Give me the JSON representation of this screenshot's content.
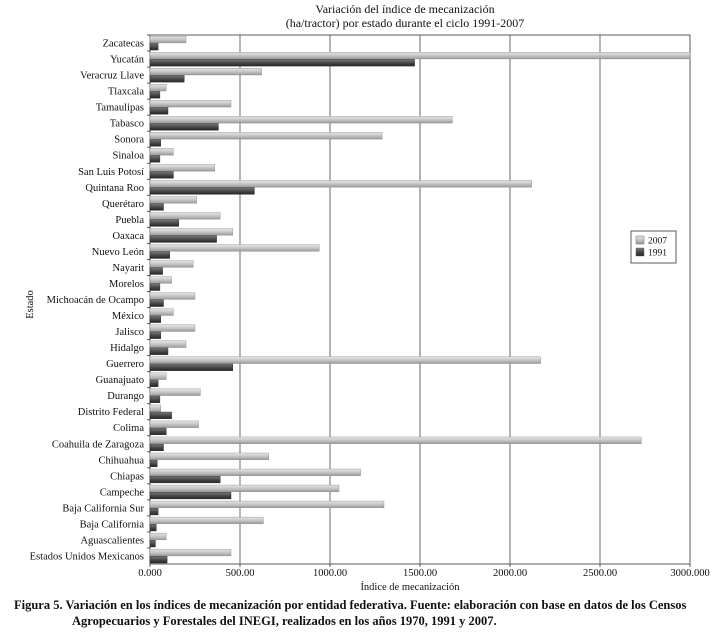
{
  "chart_data": {
    "type": "bar",
    "orientation": "horizontal",
    "title": "Variación del índice de mecanización\n(ha/tractor) por estado durante el ciclo 1991-2007",
    "xlabel": "Índice de mecanización",
    "ylabel": "Estado",
    "xlim": [
      0,
      3000
    ],
    "xticks": [
      "0.000",
      "500.00",
      "1000.00",
      "1500.00",
      "2000.00",
      "2500.00",
      "3000.000"
    ],
    "grid": "vertical",
    "legend_position": "right",
    "categories": [
      "Zacatecas",
      "Yucatán",
      "Veracruz Llave",
      "Tlaxcala",
      "Tamaulipas",
      "Tabasco",
      "Sonora",
      "Sinaloa",
      "San Luis Potosí",
      "Quintana Roo",
      "Querétaro",
      "Puebla",
      "Oaxaca",
      "Nuevo León",
      "Nayarit",
      "Morelos",
      "Michoacán de Ocampo",
      "México",
      "Jalisco",
      "Hidalgo",
      "Guerrero",
      "Guanajuato",
      "Durango",
      "Distrito Federal",
      "Colima",
      "Coahuila de Zaragoza",
      "Chihuahua",
      "Chiapas",
      "Campeche",
      "Baja California Sur",
      "Baja California",
      "Aguascalientes",
      "Estados Unidos Mexicanos"
    ],
    "series": [
      {
        "name": "2007",
        "color": "#c8c8c8",
        "values": [
          200,
          3000,
          620,
          90,
          450,
          1680,
          1290,
          130,
          360,
          2120,
          260,
          390,
          460,
          940,
          240,
          120,
          250,
          130,
          250,
          200,
          2170,
          90,
          280,
          60,
          270,
          2730,
          660,
          1170,
          1050,
          1300,
          630,
          90,
          450
        ]
      },
      {
        "name": "1991",
        "color": "#555555",
        "values": [
          45,
          1470,
          190,
          55,
          100,
          380,
          60,
          55,
          130,
          580,
          75,
          160,
          370,
          110,
          70,
          55,
          75,
          60,
          60,
          100,
          460,
          45,
          55,
          120,
          90,
          75,
          40,
          390,
          450,
          45,
          35,
          30,
          95
        ]
      }
    ]
  },
  "caption": {
    "line1": "Figura 5. Variación en los índices de mecanización por entidad federativa. Fuente: elaboración con base en datos de los Censos",
    "line2": "Agropecuarios y Forestales del INEGI, realizados en los años 1970, 1991 y 2007."
  }
}
